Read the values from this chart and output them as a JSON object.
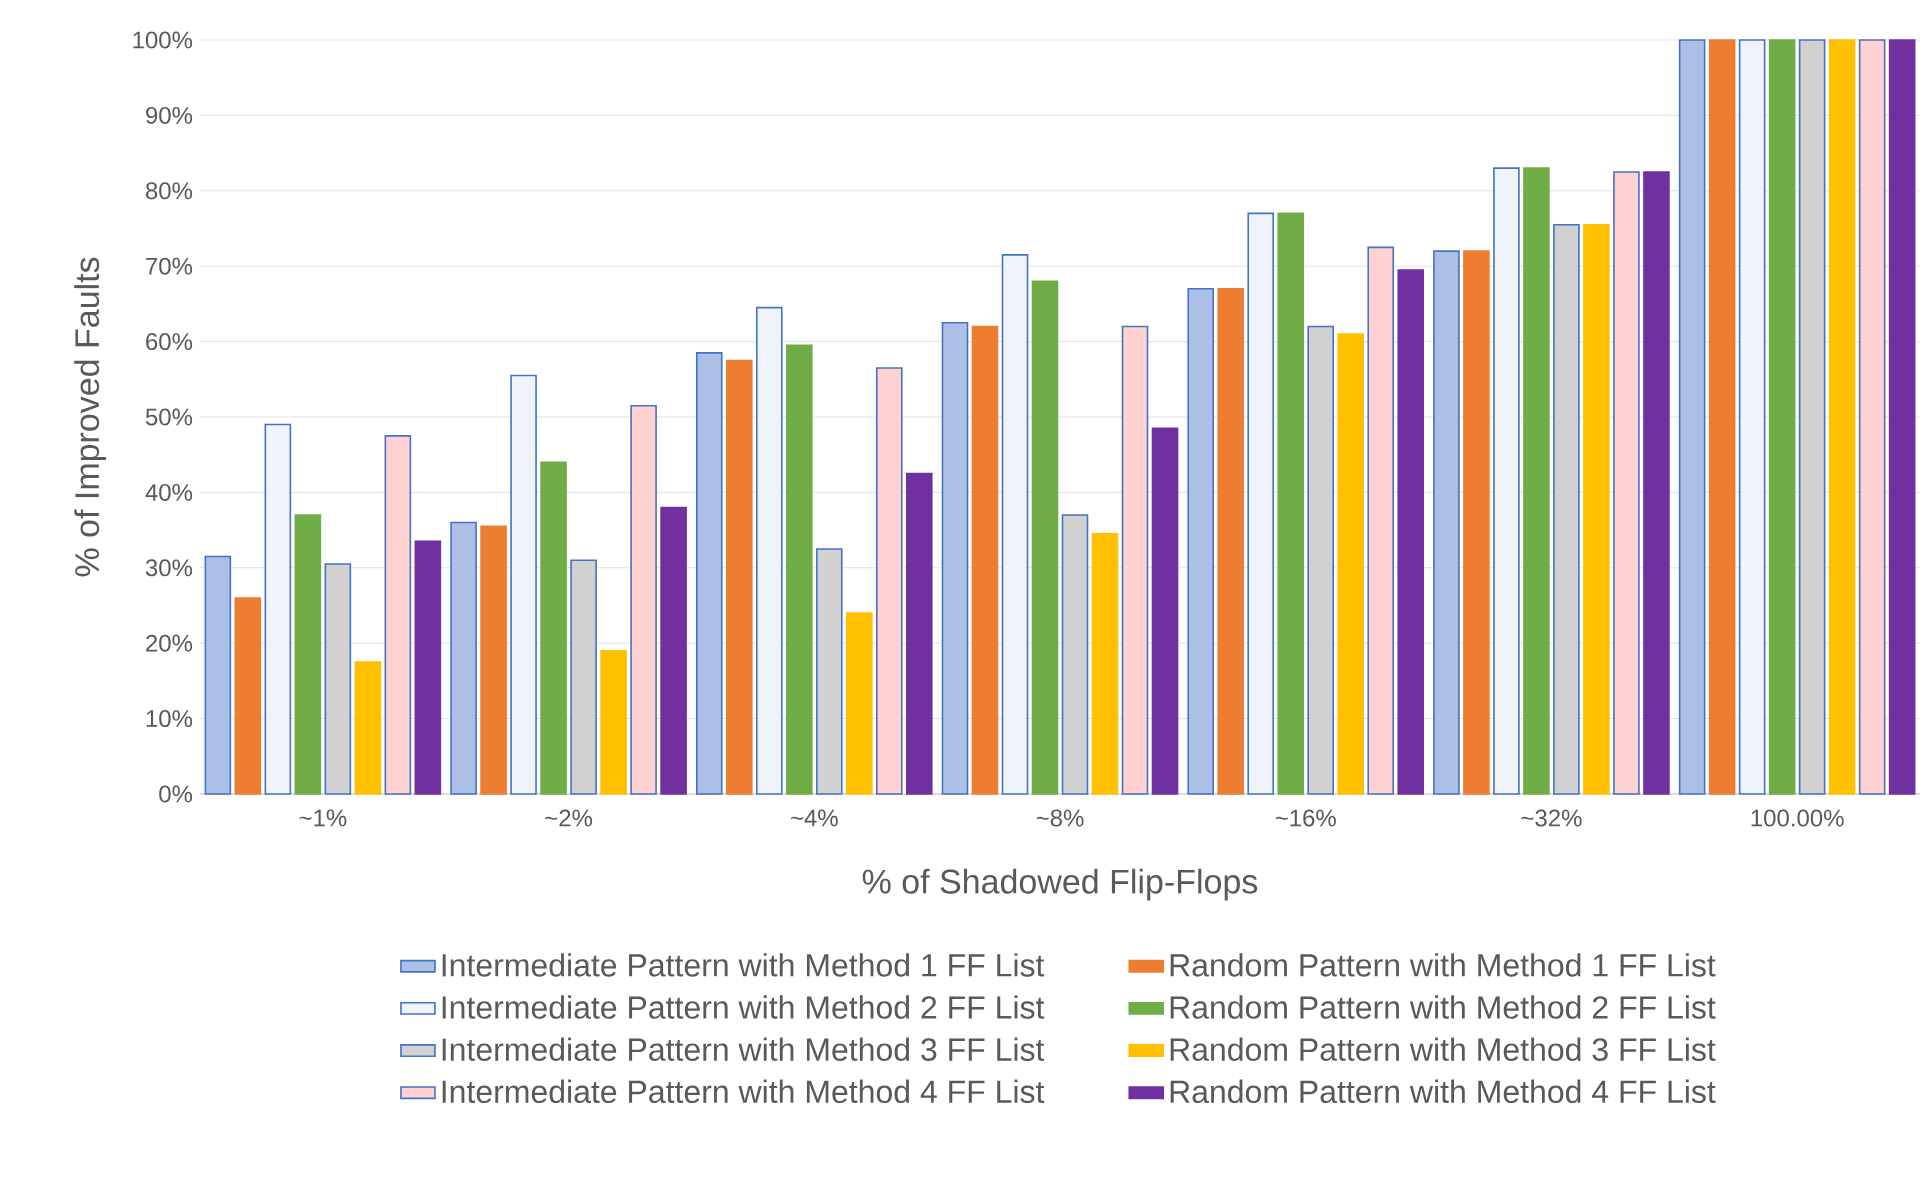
{
  "chart_data": {
    "type": "bar",
    "xlabel": "% of Shadowed Flip-Flops",
    "ylabel": "% of Improved Faults",
    "categories": [
      "~1%",
      "~2%",
      "~4%",
      "~8%",
      "~16%",
      "~32%",
      "100.00%"
    ],
    "ylim": [
      0,
      100
    ],
    "yticks": [
      {
        "value": 0,
        "label": "0%"
      },
      {
        "value": 10,
        "label": "10%"
      },
      {
        "value": 20,
        "label": "20%"
      },
      {
        "value": 30,
        "label": "30%"
      },
      {
        "value": 40,
        "label": "40%"
      },
      {
        "value": 50,
        "label": "50%"
      },
      {
        "value": 60,
        "label": "60%"
      },
      {
        "value": 70,
        "label": "70%"
      },
      {
        "value": 80,
        "label": "80%"
      },
      {
        "value": 90,
        "label": "90%"
      },
      {
        "value": 100,
        "label": "100%"
      }
    ],
    "grid": "y",
    "legend": "bottom",
    "series": [
      {
        "name": "Intermediate Pattern with Method 1 FF List",
        "color": "#4472c4",
        "values": [
          31.5,
          36,
          58.5,
          62.5,
          67,
          72,
          100
        ]
      },
      {
        "name": "Random Pattern with Method 1 FF List",
        "color": "#ed7d31",
        "values": [
          26,
          35.5,
          57.5,
          62,
          67,
          72,
          100
        ]
      },
      {
        "name": "Intermediate Pattern with Method 2 FF List",
        "color": "#4472c4",
        "values": [
          49,
          55.5,
          64.5,
          71.5,
          77,
          83,
          100
        ]
      },
      {
        "name": "Random Pattern with Method 2 FF List",
        "color": "#70ad47",
        "values": [
          37,
          44,
          59.5,
          68,
          77,
          83,
          100
        ]
      },
      {
        "name": "Intermediate Pattern with Method 3 FF List",
        "color": "#4472c4",
        "values": [
          30.5,
          31,
          32.5,
          37,
          62,
          75.5,
          100
        ]
      },
      {
        "name": "Random Pattern with Method 3 FF List",
        "color": "#ffc000",
        "values": [
          17.5,
          19,
          24,
          34.5,
          61,
          75.5,
          100
        ]
      },
      {
        "name": "Intermediate Pattern with Method 4 FF List",
        "color": "#4472c4",
        "values": [
          47.5,
          51.5,
          56.5,
          62,
          72.5,
          82.5,
          100
        ]
      },
      {
        "name": "Random Pattern with Method 4 FF List",
        "color": "#7030a0",
        "values": [
          33.5,
          38,
          42.5,
          48.5,
          69.5,
          82.5,
          100
        ]
      }
    ]
  }
}
